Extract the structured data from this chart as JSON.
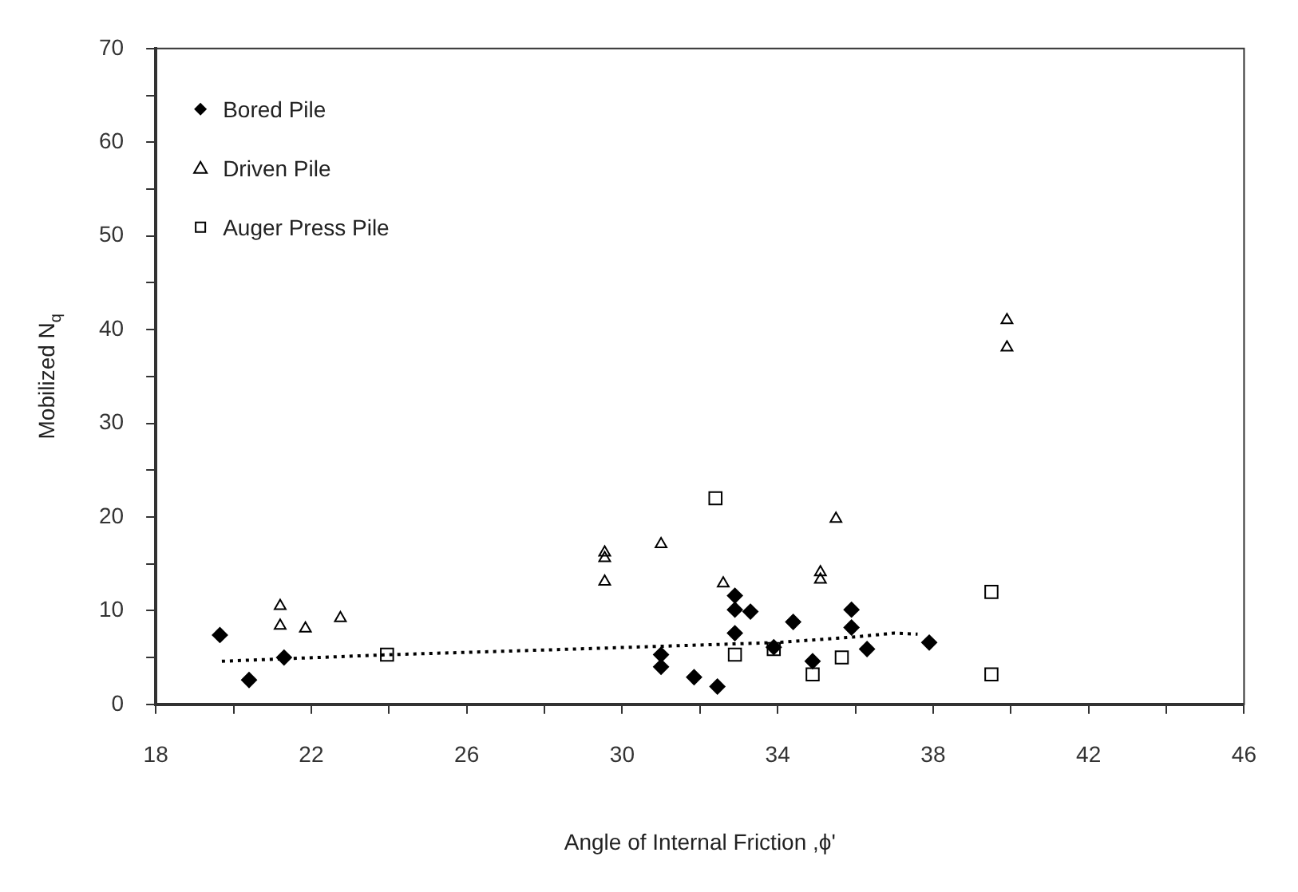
{
  "chart_data": {
    "type": "scatter",
    "xlabel": "Angle of Internal Friction ,ϕ'",
    "ylabel": "Mobilized N$_{q}$",
    "xlim": [
      18,
      46
    ],
    "xticks": [
      18,
      {
        "value": 20,
        "label": null
      },
      22,
      {
        "value": 24,
        "label": null
      },
      26,
      {
        "value": 28,
        "label": null
      },
      30,
      {
        "value": 32,
        "label": null
      },
      34,
      {
        "value": 36,
        "label": null
      },
      38,
      {
        "value": 40,
        "label": null
      },
      42,
      {
        "value": 44,
        "label": null
      },
      46
    ],
    "ylim": [
      0,
      70
    ],
    "yticks": [
      0,
      {
        "value": 5,
        "label": null
      },
      10,
      {
        "value": 15,
        "label": null
      },
      20,
      {
        "value": 25,
        "label": null
      },
      30,
      {
        "value": 35,
        "label": null
      },
      40,
      {
        "value": 45,
        "label": null
      },
      50,
      {
        "value": 55,
        "label": null
      },
      60,
      {
        "value": 65,
        "label": null
      },
      70
    ],
    "grid": false,
    "legend": "top left",
    "series": [
      {
        "name": "Bored Pile",
        "color": "#000000",
        "marker": "diamond",
        "x": [
          19.65,
          20.4,
          21.3,
          31.0,
          31.0,
          31.85,
          32.45,
          32.9,
          32.9,
          33.3,
          32.9,
          33.9,
          34.4,
          34.9,
          35.9,
          35.9,
          36.3,
          37.9
        ],
        "values": [
          7.4,
          2.6,
          5.0,
          5.3,
          4.0,
          2.9,
          1.9,
          11.6,
          10.1,
          9.9,
          7.6,
          6.1,
          8.8,
          4.6,
          10.1,
          8.2,
          5.9,
          6.6
        ]
      },
      {
        "name": "Driven Pile",
        "color": "#000000",
        "marker": "triangle",
        "x": [
          21.2,
          21.2,
          21.85,
          22.75,
          29.55,
          29.55,
          29.55,
          31.0,
          32.6,
          35.1,
          35.1,
          35.5,
          39.9,
          39.9
        ],
        "values": [
          10.5,
          8.4,
          8.1,
          9.2,
          16.2,
          15.6,
          13.1,
          17.1,
          12.9,
          14.1,
          13.3,
          19.8,
          41.0,
          38.1
        ]
      },
      {
        "name": "Auger Press Pile",
        "color": "#000000",
        "marker": "square",
        "x": [
          32.4,
          23.95,
          32.9,
          33.9,
          34.9,
          35.65,
          39.5,
          39.5
        ],
        "values": [
          22.0,
          5.3,
          5.3,
          5.9,
          3.2,
          5.0,
          12.0,
          3.2
        ]
      },
      {
        "type": "line",
        "color": "#000000",
        "line_style": "dotted",
        "marker": "none",
        "x": [
          19.7,
          24,
          28,
          31,
          34,
          36,
          37,
          37.6
        ],
        "values": [
          4.6,
          5.3,
          5.8,
          6.2,
          6.6,
          7.2,
          7.6,
          7.5
        ]
      }
    ]
  }
}
